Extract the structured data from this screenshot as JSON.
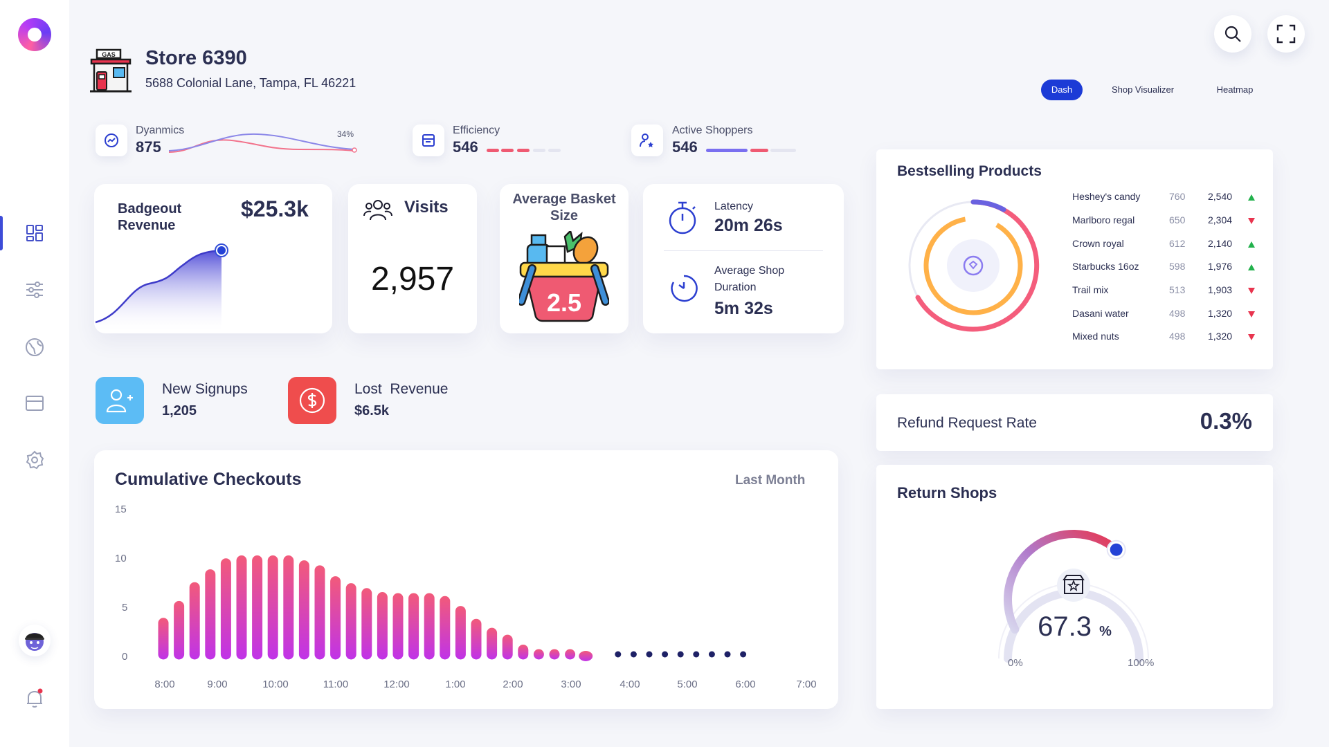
{
  "store": {
    "title": "Store 6390",
    "address": "5688 Colonial Lane, Tampa, FL 46221",
    "icon_label": "GAS"
  },
  "tabs": [
    {
      "label": "Dash",
      "active": true
    },
    {
      "label": "Shop Visualizer",
      "active": false
    },
    {
      "label": "Heatmap",
      "active": false
    }
  ],
  "sidebar": {
    "items": [
      {
        "name": "dashboard-icon",
        "active": true
      },
      {
        "name": "sliders-icon",
        "active": false
      },
      {
        "name": "globe-icon",
        "active": false
      },
      {
        "name": "card-icon",
        "active": false
      },
      {
        "name": "settings-icon",
        "active": false
      }
    ]
  },
  "metrics": {
    "dynamics": {
      "label": "Dyanmics",
      "value": "875",
      "percent": "34%"
    },
    "efficiency": {
      "label": "Efficiency",
      "value": "546"
    },
    "active_shoppers": {
      "label": "Active Shoppers",
      "value": "546"
    }
  },
  "badgeout": {
    "label": "Badgeout Revenue",
    "value": "$25.3k"
  },
  "visits": {
    "label": "Visits",
    "value": "2,957"
  },
  "basket": {
    "label": "Average Basket Size",
    "value": "2.5"
  },
  "latency": {
    "label": "Latency",
    "value": "20m 26s"
  },
  "shop_duration": {
    "label": "Average Shop Duration",
    "value": "5m 32s"
  },
  "signups": {
    "label": "New Signups",
    "value": "1,205"
  },
  "lost_revenue": {
    "label": "Lost  Revenue",
    "value": "$6.5k"
  },
  "bestselling": {
    "title": "Bestselling Products",
    "rows": [
      {
        "name": "Heshey's candy",
        "qty": "760",
        "value": "2,540",
        "trend": "up"
      },
      {
        "name": "Marlboro regal",
        "qty": "650",
        "value": "2,304",
        "trend": "down"
      },
      {
        "name": "Crown royal",
        "qty": "612",
        "value": "2,140",
        "trend": "up"
      },
      {
        "name": "Starbucks 16oz",
        "qty": "598",
        "value": "1,976",
        "trend": "up"
      },
      {
        "name": "Trail mix",
        "qty": "513",
        "value": "1,903",
        "trend": "down"
      },
      {
        "name": "Dasani water",
        "qty": "498",
        "value": "1,320",
        "trend": "down"
      },
      {
        "name": "Mixed nuts",
        "qty": "498",
        "value": "1,320",
        "trend": "down"
      }
    ]
  },
  "refund": {
    "label": "Refund Request Rate",
    "value": "0.3%"
  },
  "return_shops": {
    "title": "Return Shops",
    "value": "67.3",
    "unit": "%",
    "min_label": "0%",
    "max_label": "100%",
    "fraction": 0.673
  },
  "checkouts": {
    "title": "Cumulative Checkouts",
    "period": "Last Month",
    "chart_data": {
      "type": "bar",
      "title": "Cumulative Checkouts",
      "ylim": [
        0,
        15
      ],
      "y_ticks": [
        "15",
        "10",
        "5",
        "0"
      ],
      "x_ticks": [
        "8:00",
        "9:00",
        "10:00",
        "11:00",
        "12:00",
        "1:00",
        "2:00",
        "3:00",
        "4:00",
        "5:00",
        "6:00",
        "7:00"
      ],
      "values": [
        4.2,
        5.9,
        7.8,
        9.1,
        10.2,
        10.5,
        10.5,
        10.5,
        10.5,
        10.0,
        9.5,
        8.4,
        7.7,
        7.2,
        6.8,
        6.7,
        6.7,
        6.7,
        6.4,
        5.4,
        4.1,
        3.2,
        2.5,
        1.5,
        0.9,
        0.8,
        0.8,
        0.8,
        0,
        0,
        0,
        0,
        0,
        0,
        0,
        0,
        0
      ],
      "highlight_index": 27,
      "colors": {
        "top": "#f25a7a",
        "bottom": "#c033e8",
        "future_dot": "#1e2166"
      }
    }
  }
}
